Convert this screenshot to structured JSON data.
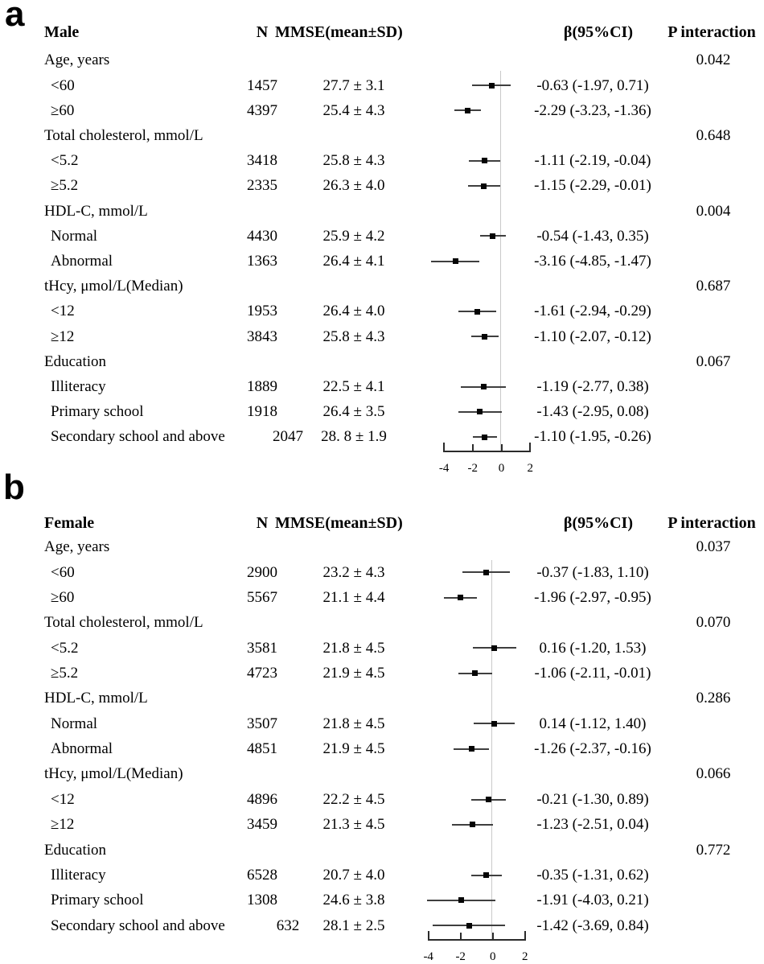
{
  "chart_data": [
    {
      "type": "forest",
      "panel_label": "a",
      "columns": {
        "group": "Male",
        "n": "N",
        "mmse": "MMSE(mean±SD)",
        "beta": "β(95%CI)",
        "p": "P interaction"
      },
      "axis": {
        "ticks": [
          "-4",
          "-2",
          "0",
          "2"
        ],
        "tick_values": [
          -4,
          -2,
          0,
          2
        ],
        "xlim": [
          -4,
          2
        ]
      },
      "rows": [
        {
          "type": "group",
          "label": "Age, years",
          "p": "0.042"
        },
        {
          "type": "item",
          "label": "<60",
          "n": "1457",
          "mmse": "27.7 ± 3.1",
          "beta_label": "-0.63 (-1.97, 0.71)",
          "beta": -0.63,
          "ci": [
            -1.97,
            0.71
          ]
        },
        {
          "type": "item",
          "label": "≥60",
          "n": "4397",
          "mmse": "25.4 ± 4.3",
          "beta_label": "-2.29 (-3.23, -1.36)",
          "beta": -2.29,
          "ci": [
            -3.23,
            -1.36
          ]
        },
        {
          "type": "group",
          "label": "Total cholesterol, mmol/L",
          "p": "0.648"
        },
        {
          "type": "item",
          "label": "<5.2",
          "n": "3418",
          "mmse": "25.8 ± 4.3",
          "beta_label": "-1.11 (-2.19, -0.04)",
          "beta": -1.11,
          "ci": [
            -2.19,
            -0.04
          ]
        },
        {
          "type": "item",
          "label": "≥5.2",
          "n": "2335",
          "mmse": "26.3 ± 4.0",
          "beta_label": "-1.15 (-2.29, -0.01)",
          "beta": -1.15,
          "ci": [
            -2.29,
            -0.01
          ]
        },
        {
          "type": "group",
          "label": "HDL-C, mmol/L",
          "p": "0.004"
        },
        {
          "type": "item",
          "label": "Normal",
          "n": "4430",
          "mmse": "25.9 ± 4.2",
          "beta_label": "-0.54 (-1.43, 0.35)",
          "beta": -0.54,
          "ci": [
            -1.43,
            0.35
          ]
        },
        {
          "type": "item",
          "label": "Abnormal",
          "n": "1363",
          "mmse": "26.4 ± 4.1",
          "beta_label": "-3.16 (-4.85, -1.47)",
          "beta": -3.16,
          "ci": [
            -4.85,
            -1.47
          ]
        },
        {
          "type": "group",
          "label": "tHcy, μmol/L(Median)",
          "p": "0.687"
        },
        {
          "type": "item",
          "label": "<12",
          "n": "1953",
          "mmse": "26.4 ± 4.0",
          "beta_label": "-1.61 (-2.94, -0.29)",
          "beta": -1.61,
          "ci": [
            -2.94,
            -0.29
          ]
        },
        {
          "type": "item",
          "label": "≥12",
          "n": "3843",
          "mmse": "25.8 ± 4.3",
          "beta_label": "-1.10 (-2.07, -0.12)",
          "beta": -1.1,
          "ci": [
            -2.07,
            -0.12
          ]
        },
        {
          "type": "group",
          "label": "Education",
          "p": "0.067"
        },
        {
          "type": "item",
          "label": "Illiteracy",
          "n": "1889",
          "mmse": "22.5 ± 4.1",
          "beta_label": "-1.19 (-2.77, 0.38)",
          "beta": -1.19,
          "ci": [
            -2.77,
            0.38
          ]
        },
        {
          "type": "item",
          "label": "Primary school",
          "n": "1918",
          "mmse": "26.4 ± 3.5",
          "beta_label": "-1.43 (-2.95, 0.08)",
          "beta": -1.43,
          "ci": [
            -2.95,
            0.08
          ]
        },
        {
          "type": "item",
          "label": "Secondary school and above",
          "n": "2047",
          "mmse": "28. 8 ± 1.9",
          "beta_label": "-1.10 (-1.95, -0.26)",
          "beta": -1.1,
          "ci": [
            -1.95,
            -0.26
          ]
        }
      ]
    },
    {
      "type": "forest",
      "panel_label": "b",
      "columns": {
        "group": "Female",
        "n": "N",
        "mmse": "MMSE(mean±SD)",
        "beta": "β(95%CI)",
        "p": "P interaction"
      },
      "axis": {
        "ticks": [
          "-4",
          "-2",
          "0",
          "2"
        ],
        "tick_values": [
          -4,
          -2,
          0,
          2
        ],
        "xlim": [
          -4,
          2
        ]
      },
      "rows": [
        {
          "type": "group",
          "label": "Age, years",
          "p": "0.037"
        },
        {
          "type": "item",
          "label": "<60",
          "n": "2900",
          "mmse": "23.2 ± 4.3",
          "beta_label": "-0.37 (-1.83, 1.10)",
          "beta": -0.37,
          "ci": [
            -1.83,
            1.1
          ]
        },
        {
          "type": "item",
          "label": "≥60",
          "n": "5567",
          "mmse": "21.1 ± 4.4",
          "beta_label": "-1.96 (-2.97, -0.95)",
          "beta": -1.96,
          "ci": [
            -2.97,
            -0.95
          ]
        },
        {
          "type": "group",
          "label": "Total cholesterol, mmol/L",
          "p": "0.070"
        },
        {
          "type": "item",
          "label": "<5.2",
          "n": "3581",
          "mmse": "21.8 ± 4.5",
          "beta_label": "0.16 (-1.20, 1.53)",
          "beta": 0.16,
          "ci": [
            -1.2,
            1.53
          ]
        },
        {
          "type": "item",
          "label": "≥5.2",
          "n": "4723",
          "mmse": "21.9 ± 4.5",
          "beta_label": "-1.06 (-2.11, -0.01)",
          "beta": -1.06,
          "ci": [
            -2.11,
            -0.01
          ]
        },
        {
          "type": "group",
          "label": "HDL-C, mmol/L",
          "p": "0.286"
        },
        {
          "type": "item",
          "label": "Normal",
          "n": "3507",
          "mmse": "21.8 ± 4.5",
          "beta_label": "0.14 (-1.12, 1.40)",
          "beta": 0.14,
          "ci": [
            -1.12,
            1.4
          ]
        },
        {
          "type": "item",
          "label": "Abnormal",
          "n": "4851",
          "mmse": "21.9 ± 4.5",
          "beta_label": "-1.26 (-2.37, -0.16)",
          "beta": -1.26,
          "ci": [
            -2.37,
            -0.16
          ]
        },
        {
          "type": "group",
          "label": "tHcy, μmol/L(Median)",
          "p": "0.066"
        },
        {
          "type": "item",
          "label": "<12",
          "n": "4896",
          "mmse": "22.2 ± 4.5",
          "beta_label": "-0.21 (-1.30, 0.89)",
          "beta": -0.21,
          "ci": [
            -1.3,
            0.89
          ]
        },
        {
          "type": "item",
          "label": "≥12",
          "n": "3459",
          "mmse": "21.3 ± 4.5",
          "beta_label": "-1.23 (-2.51, 0.04)",
          "beta": -1.23,
          "ci": [
            -2.51,
            0.04
          ]
        },
        {
          "type": "group",
          "label": "Education",
          "p": "0.772"
        },
        {
          "type": "item",
          "label": "Illiteracy",
          "n": "6528",
          "mmse": "20.7 ± 4.0",
          "beta_label": "-0.35 (-1.31, 0.62)",
          "beta": -0.35,
          "ci": [
            -1.31,
            0.62
          ]
        },
        {
          "type": "item",
          "label": "Primary school",
          "n": "1308",
          "mmse": "24.6 ± 3.8",
          "beta_label": "-1.91 (-4.03, 0.21)",
          "beta": -1.91,
          "ci": [
            -4.03,
            0.21
          ]
        },
        {
          "type": "item",
          "label": "Secondary school and above",
          "n": "632",
          "mmse": "28.1 ± 2.5",
          "beta_label": "-1.42 (-3.69, 0.84)",
          "beta": -1.42,
          "ci": [
            -3.69,
            0.84
          ]
        }
      ]
    }
  ]
}
